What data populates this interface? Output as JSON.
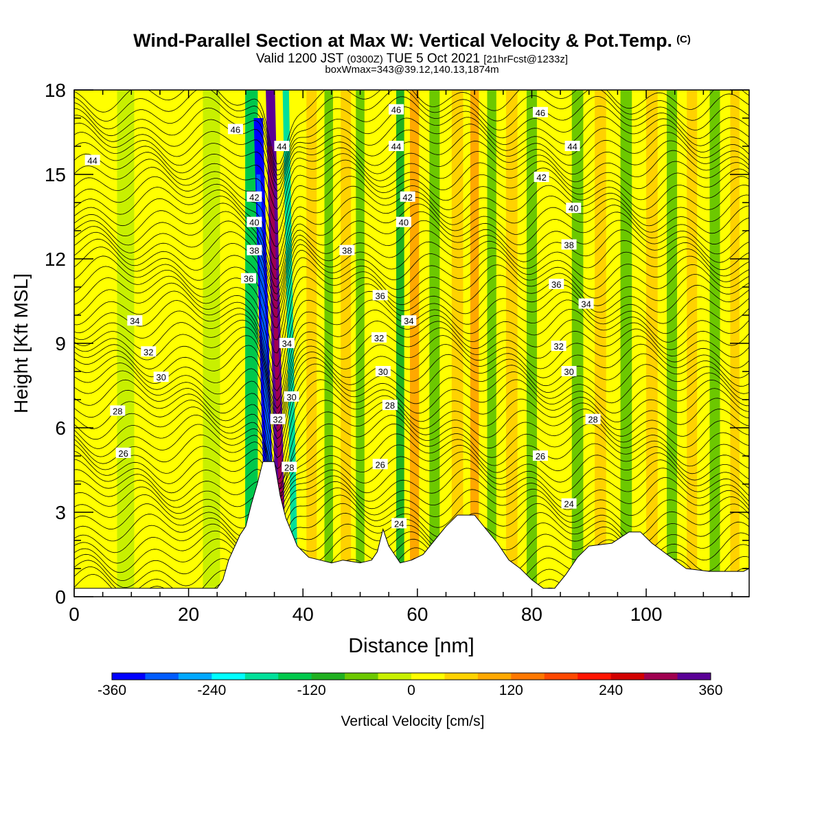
{
  "title": {
    "main": "Wind-Parallel Section at Max W: Vertical Velocity & Pot.Temp.",
    "copyright": "(C)",
    "valid_prefix": "Valid 1200 JST",
    "valid_z": "(0300Z)",
    "valid_date": "TUE 5 Oct 2021",
    "valid_fcst": "[21hrFcst@1233z]",
    "box_info": "boxWmax=343@39.12,140.13,1874m"
  },
  "chart_data": {
    "type": "heatmap",
    "xlabel": "Distance [nm]",
    "ylabel": "Height [Kft MSL]",
    "xlim": [
      0,
      118
    ],
    "ylim": [
      0,
      18
    ],
    "x_ticks": [
      0,
      20,
      40,
      60,
      80,
      100
    ],
    "y_ticks": [
      0,
      3,
      6,
      9,
      12,
      15,
      18
    ],
    "colorbar": {
      "label": "Vertical Velocity [cm/s]",
      "range": [
        -360,
        360
      ],
      "tick_labels": [
        -360,
        -240,
        -120,
        0,
        120,
        240,
        360
      ],
      "colors": [
        "#0000ff",
        "#005cff",
        "#00a8ff",
        "#00ffff",
        "#00e09a",
        "#00c84c",
        "#20b020",
        "#6cc800",
        "#c8f000",
        "#ffff00",
        "#ffd200",
        "#ffa800",
        "#ff7800",
        "#ff4800",
        "#ff1400",
        "#d20000",
        "#a00050",
        "#5a0096"
      ]
    },
    "terrain_kft": [
      [
        0,
        0.3
      ],
      [
        25,
        0.3
      ],
      [
        26,
        0.6
      ],
      [
        27,
        1.3
      ],
      [
        29,
        2.2
      ],
      [
        30,
        2.5
      ],
      [
        31,
        3.3
      ],
      [
        32,
        4.0
      ],
      [
        33,
        4.8
      ],
      [
        35,
        4.8
      ],
      [
        36,
        3.6
      ],
      [
        37,
        2.8
      ],
      [
        38,
        2.3
      ],
      [
        39,
        1.8
      ],
      [
        41,
        1.4
      ],
      [
        43,
        1.3
      ],
      [
        45,
        1.2
      ],
      [
        47,
        1.3
      ],
      [
        50,
        1.2
      ],
      [
        52,
        1.3
      ],
      [
        53,
        1.6
      ],
      [
        54,
        2.4
      ],
      [
        55,
        1.8
      ],
      [
        56,
        1.5
      ],
      [
        57,
        1.2
      ],
      [
        59,
        1.3
      ],
      [
        61,
        1.5
      ],
      [
        63,
        2.0
      ],
      [
        65,
        2.5
      ],
      [
        67,
        2.9
      ],
      [
        70,
        2.9
      ],
      [
        72,
        2.4
      ],
      [
        74,
        1.9
      ],
      [
        76,
        1.3
      ],
      [
        78,
        1.0
      ],
      [
        80,
        0.6
      ],
      [
        82,
        0.3
      ],
      [
        84,
        0.3
      ],
      [
        86,
        0.8
      ],
      [
        88,
        1.4
      ],
      [
        90,
        1.8
      ],
      [
        94,
        1.9
      ],
      [
        97,
        2.3
      ],
      [
        99,
        2.3
      ],
      [
        101,
        1.9
      ],
      [
        103,
        1.6
      ],
      [
        105,
        1.3
      ],
      [
        107,
        1.0
      ],
      [
        111,
        0.9
      ],
      [
        115,
        0.9
      ],
      [
        117,
        0.9
      ],
      [
        118,
        1.0
      ]
    ],
    "bands": [
      {
        "x": 3,
        "w": 4,
        "v": 12
      },
      {
        "x": 9,
        "w": 3,
        "v": -25
      },
      {
        "x": 24,
        "w": 3,
        "v": -35
      },
      {
        "x": 31,
        "w": 2.2,
        "v": -160
      },
      {
        "x": 34.4,
        "w": 1.6,
        "v": -360,
        "tilt": -2.2,
        "hi": 17
      },
      {
        "x": 36.3,
        "w": 1.6,
        "v": 340,
        "tilt": -2.0
      },
      {
        "x": 38.6,
        "w": 1.1,
        "v": -190,
        "tilt": -1.6
      },
      {
        "x": 41.5,
        "w": 1.8,
        "v": 60
      },
      {
        "x": 44.5,
        "w": 1.5,
        "v": -70
      },
      {
        "x": 47.5,
        "w": 1.8,
        "v": 45
      },
      {
        "x": 50,
        "w": 1.5,
        "v": -55
      },
      {
        "x": 54.5,
        "w": 2,
        "v": 35
      },
      {
        "x": 57,
        "w": 1.4,
        "v": -85
      },
      {
        "x": 59.5,
        "w": 1.6,
        "v": 95
      },
      {
        "x": 63,
        "w": 1.8,
        "v": -75
      },
      {
        "x": 67,
        "w": 2,
        "v": 65
      },
      {
        "x": 70,
        "w": 1.5,
        "v": 85
      },
      {
        "x": 73,
        "w": 1.6,
        "v": -65
      },
      {
        "x": 76.5,
        "w": 2,
        "v": 55
      },
      {
        "x": 80,
        "w": 1.8,
        "v": -45
      },
      {
        "x": 84,
        "w": 2,
        "v": 35
      },
      {
        "x": 88,
        "w": 2,
        "v": -55
      },
      {
        "x": 92,
        "w": 2,
        "v": 45
      },
      {
        "x": 96.5,
        "w": 2,
        "v": -65
      },
      {
        "x": 101,
        "w": 2,
        "v": 55
      },
      {
        "x": 104.5,
        "w": 1.8,
        "v": -55
      },
      {
        "x": 108,
        "w": 1.8,
        "v": 60
      },
      {
        "x": 112,
        "w": 1.8,
        "v": -65
      },
      {
        "x": 115.5,
        "w": 1.6,
        "v": 45
      }
    ],
    "theta_levels_min": 20,
    "theta_levels_max": 48,
    "contour_labels": [
      {
        "v": "44",
        "x": 3.2,
        "y": 15.5
      },
      {
        "v": "46",
        "x": 28.2,
        "y": 16.6
      },
      {
        "v": "42",
        "x": 31.5,
        "y": 14.2
      },
      {
        "v": "40",
        "x": 31.5,
        "y": 13.3
      },
      {
        "v": "38",
        "x": 31.5,
        "y": 12.3
      },
      {
        "v": "36",
        "x": 30.5,
        "y": 11.3
      },
      {
        "v": "34",
        "x": 10.6,
        "y": 9.8
      },
      {
        "v": "32",
        "x": 13,
        "y": 8.7
      },
      {
        "v": "30",
        "x": 15.2,
        "y": 7.8
      },
      {
        "v": "28",
        "x": 7.6,
        "y": 6.6
      },
      {
        "v": "26",
        "x": 8.6,
        "y": 5.1
      },
      {
        "v": "44",
        "x": 36.3,
        "y": 16.0
      },
      {
        "v": "34",
        "x": 37.2,
        "y": 9.0
      },
      {
        "v": "30",
        "x": 38,
        "y": 7.1
      },
      {
        "v": "32",
        "x": 35.6,
        "y": 6.3
      },
      {
        "v": "28",
        "x": 37.6,
        "y": 4.6
      },
      {
        "v": "38",
        "x": 47.7,
        "y": 12.3
      },
      {
        "v": "36",
        "x": 53.5,
        "y": 10.7
      },
      {
        "v": "34",
        "x": 58.5,
        "y": 9.8
      },
      {
        "v": "32",
        "x": 53.3,
        "y": 9.2
      },
      {
        "v": "30",
        "x": 54,
        "y": 8.0
      },
      {
        "v": "28",
        "x": 55.2,
        "y": 6.8
      },
      {
        "v": "26",
        "x": 53.5,
        "y": 4.7
      },
      {
        "v": "24",
        "x": 56.8,
        "y": 2.6
      },
      {
        "v": "46",
        "x": 56.3,
        "y": 17.3
      },
      {
        "v": "44",
        "x": 56.3,
        "y": 16.0
      },
      {
        "v": "42",
        "x": 58.3,
        "y": 14.2
      },
      {
        "v": "40",
        "x": 57.6,
        "y": 13.3
      },
      {
        "v": "46",
        "x": 81.5,
        "y": 17.2
      },
      {
        "v": "44",
        "x": 87.1,
        "y": 16.0
      },
      {
        "v": "42",
        "x": 81.7,
        "y": 14.9
      },
      {
        "v": "40",
        "x": 87.3,
        "y": 13.8
      },
      {
        "v": "38",
        "x": 86.5,
        "y": 12.5
      },
      {
        "v": "36",
        "x": 84.3,
        "y": 11.1
      },
      {
        "v": "34",
        "x": 89.5,
        "y": 10.4
      },
      {
        "v": "32",
        "x": 84.7,
        "y": 8.9
      },
      {
        "v": "30",
        "x": 86.5,
        "y": 8.0
      },
      {
        "v": "28",
        "x": 90.7,
        "y": 6.3
      },
      {
        "v": "26",
        "x": 81.5,
        "y": 5.0
      },
      {
        "v": "24",
        "x": 86.5,
        "y": 3.3
      }
    ]
  }
}
